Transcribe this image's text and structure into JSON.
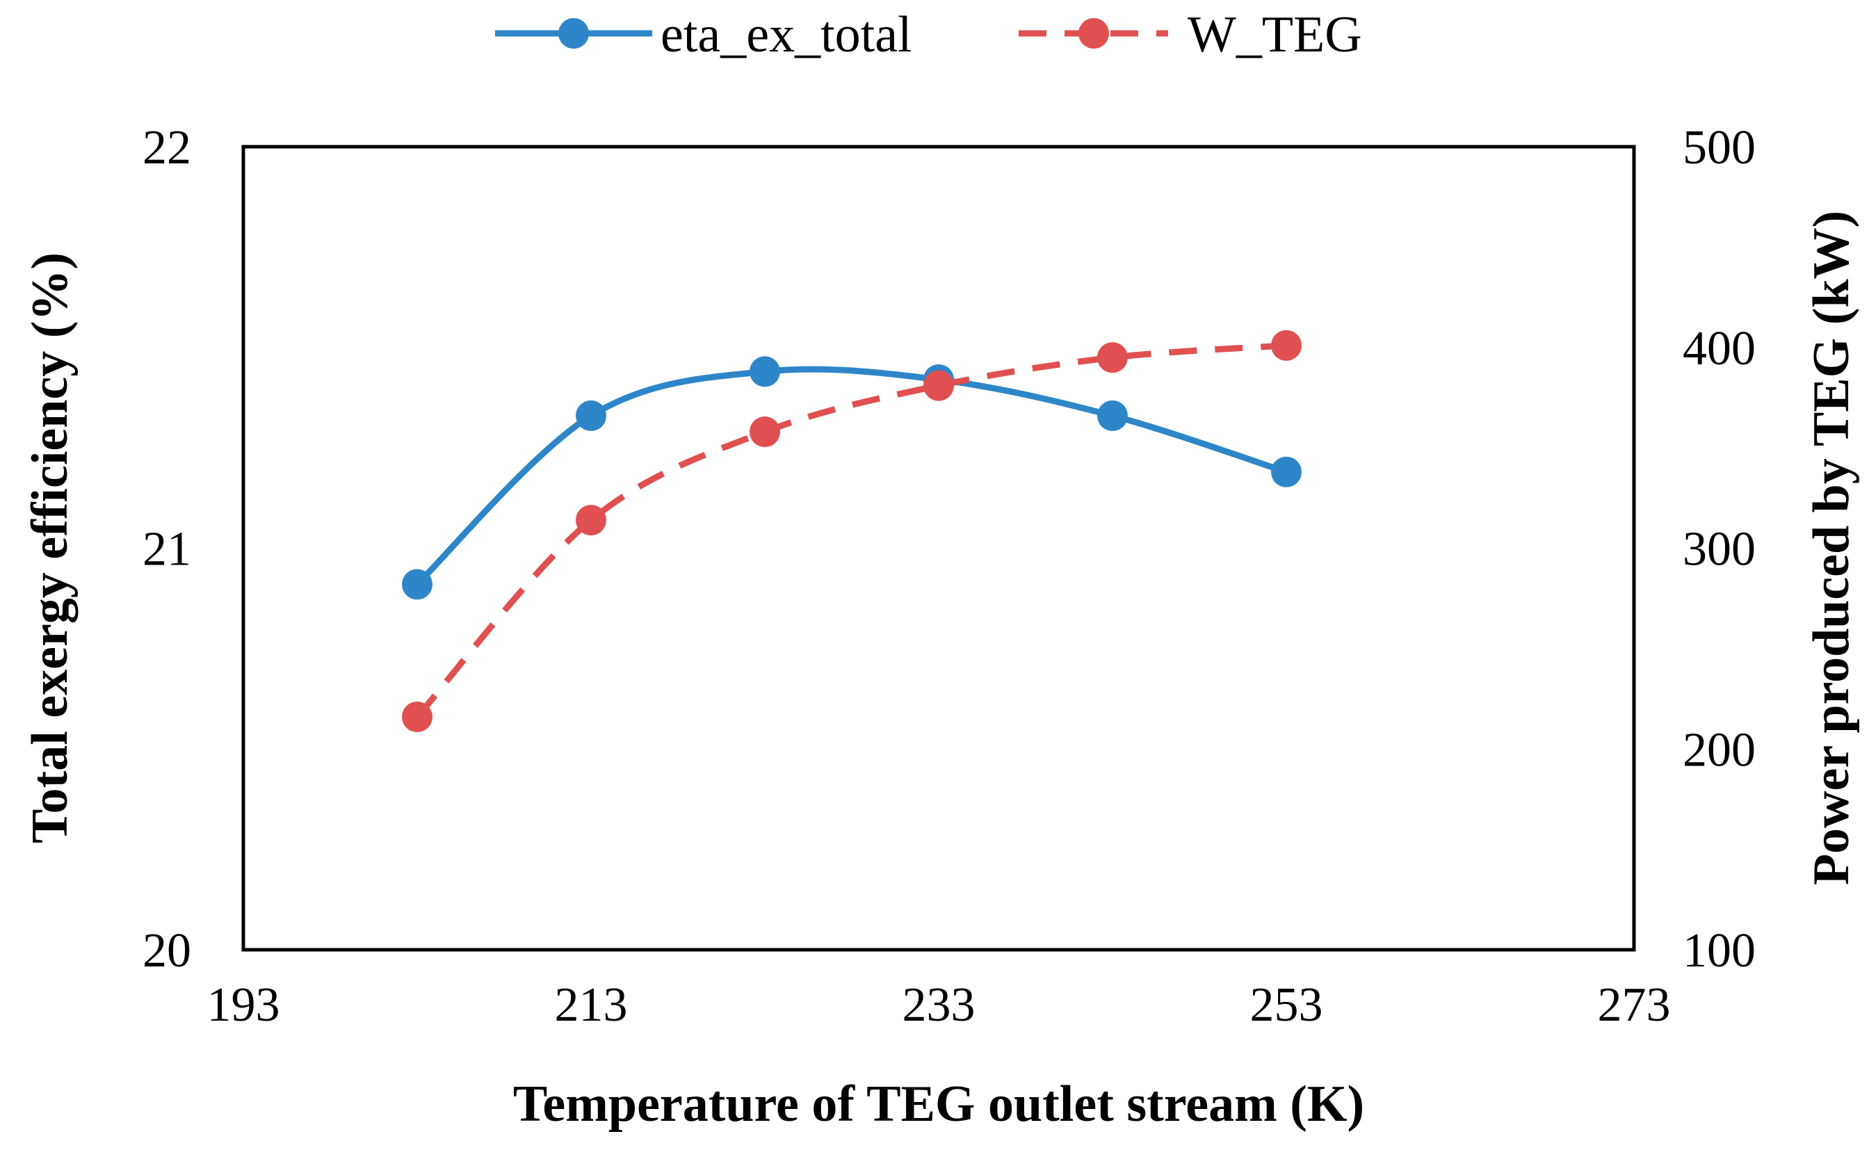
{
  "chart_data": {
    "type": "line",
    "title": "",
    "xlabel": "Temperature of TEG outlet stream (K)",
    "ylabel": "Total exergy efficiency (%)",
    "y2label": "Power produced by TEG (kW)",
    "xlim": [
      193,
      273
    ],
    "ylim": [
      20,
      22
    ],
    "y2lim": [
      100,
      500
    ],
    "xticks": [
      193,
      213,
      233,
      253,
      273
    ],
    "yticks": [
      20,
      21,
      22
    ],
    "y2ticks": [
      100,
      200,
      300,
      400,
      500
    ],
    "x": [
      203,
      213,
      223,
      233,
      243,
      253
    ],
    "series": [
      {
        "name": "eta_ex_total",
        "axis": "left",
        "values": [
          20.91,
          21.33,
          21.44,
          21.42,
          21.33,
          21.19
        ],
        "color": "#2E86C9",
        "dash": "solid",
        "marker": "circle"
      },
      {
        "name": "W_TEG",
        "axis": "right",
        "values": [
          216,
          314,
          358,
          381,
          395,
          401
        ],
        "color": "#E05050",
        "dash": "dashed",
        "marker": "circle"
      }
    ],
    "legend_position": "top-center",
    "grid": false
  }
}
